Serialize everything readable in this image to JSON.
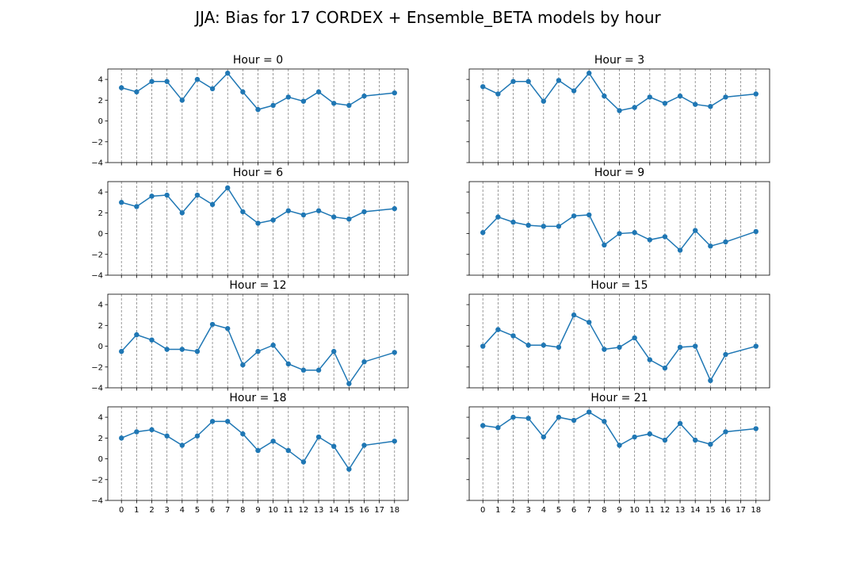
{
  "title": "JJA: Bias for 17 CORDEX + Ensemble_BETA models by hour",
  "colors": {
    "series": "#1f77b4",
    "grid": "#808080"
  },
  "chart_data": {
    "type": "line",
    "grid": "vertical dashed at every x tick",
    "x": [
      0,
      1,
      2,
      3,
      4,
      5,
      6,
      7,
      8,
      9,
      10,
      11,
      12,
      13,
      14,
      15,
      16,
      18
    ],
    "xticks": [
      0,
      1,
      2,
      3,
      4,
      5,
      6,
      7,
      8,
      9,
      10,
      11,
      12,
      13,
      14,
      15,
      16,
      17,
      18
    ],
    "xlim": [
      -0.9,
      18.9
    ],
    "ylim": [
      -4,
      5
    ],
    "yticks": [
      -4,
      -2,
      0,
      2,
      4
    ],
    "panels": [
      {
        "title": "Hour = 0",
        "values": [
          3.2,
          2.8,
          3.8,
          3.8,
          2.0,
          4.0,
          3.1,
          4.6,
          2.8,
          1.1,
          1.5,
          2.3,
          1.9,
          2.8,
          1.7,
          1.5,
          2.4,
          2.7
        ]
      },
      {
        "title": "Hour = 3",
        "values": [
          3.3,
          2.6,
          3.8,
          3.8,
          1.9,
          3.9,
          2.9,
          4.6,
          2.4,
          1.0,
          1.3,
          2.3,
          1.7,
          2.4,
          1.6,
          1.4,
          2.3,
          2.6
        ]
      },
      {
        "title": "Hour = 6",
        "values": [
          3.0,
          2.6,
          3.6,
          3.7,
          2.0,
          3.7,
          2.8,
          4.4,
          2.1,
          1.0,
          1.3,
          2.2,
          1.8,
          2.2,
          1.6,
          1.4,
          2.1,
          2.4
        ]
      },
      {
        "title": "Hour = 9",
        "values": [
          0.1,
          1.6,
          1.1,
          0.8,
          0.7,
          0.7,
          1.7,
          1.8,
          -1.1,
          0.0,
          0.1,
          -0.6,
          -0.3,
          -1.6,
          0.3,
          -1.2,
          -0.8,
          0.2
        ]
      },
      {
        "title": "Hour = 12",
        "values": [
          -0.5,
          1.1,
          0.6,
          -0.3,
          -0.3,
          -0.5,
          2.1,
          1.7,
          -1.8,
          -0.5,
          0.1,
          -1.7,
          -2.3,
          -2.3,
          -0.5,
          -3.6,
          -1.5,
          -0.6
        ]
      },
      {
        "title": "Hour = 15",
        "values": [
          0.0,
          1.6,
          1.0,
          0.1,
          0.1,
          -0.1,
          3.0,
          2.3,
          -0.3,
          -0.1,
          0.8,
          -1.3,
          -2.1,
          -0.1,
          0.0,
          -3.3,
          -0.8,
          0.0
        ]
      },
      {
        "title": "Hour = 18",
        "values": [
          2.0,
          2.6,
          2.8,
          2.2,
          1.3,
          2.2,
          3.6,
          3.6,
          2.4,
          0.8,
          1.7,
          0.8,
          -0.3,
          2.1,
          1.2,
          -1.0,
          1.3,
          1.7
        ]
      },
      {
        "title": "Hour = 21",
        "values": [
          3.2,
          3.0,
          4.0,
          3.9,
          2.1,
          4.0,
          3.7,
          4.5,
          3.6,
          1.3,
          2.1,
          2.4,
          1.8,
          3.4,
          1.8,
          1.4,
          2.6,
          2.9
        ]
      }
    ]
  }
}
